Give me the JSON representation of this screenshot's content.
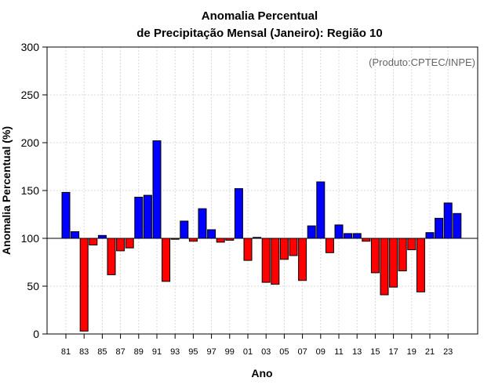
{
  "chart_data": {
    "type": "bar",
    "title_line1": "Anomalia Percentual",
    "title_line2": "de Precipitação Mensal (Janeiro): Região 10",
    "xlabel": "Ano",
    "ylabel": "Anomalia Percentual (%)",
    "credit": "(Produto:CPTEC/INPE)",
    "ylim": [
      0,
      300
    ],
    "yticks": [
      0,
      50,
      100,
      150,
      200,
      250,
      300
    ],
    "baseline": 100,
    "colors": {
      "above": "#0000ff",
      "below": "#ff0000"
    },
    "grid": true,
    "categories": [
      "81",
      "82",
      "83",
      "84",
      "85",
      "86",
      "87",
      "88",
      "89",
      "90",
      "91",
      "92",
      "93",
      "94",
      "95",
      "96",
      "97",
      "98",
      "99",
      "00",
      "01",
      "02",
      "03",
      "04",
      "05",
      "06",
      "07",
      "08",
      "09",
      "10",
      "11",
      "12",
      "13",
      "14",
      "15",
      "16",
      "17",
      "18",
      "19",
      "20",
      "21",
      "22",
      "23",
      "24"
    ],
    "xtick_labels": [
      "81",
      "83",
      "85",
      "87",
      "89",
      "91",
      "93",
      "95",
      "97",
      "99",
      "01",
      "03",
      "05",
      "07",
      "09",
      "11",
      "13",
      "15",
      "17",
      "19",
      "21",
      "23"
    ],
    "values": [
      148,
      107,
      3,
      93,
      103,
      62,
      87,
      90,
      143,
      145,
      202,
      55,
      99,
      118,
      97,
      131,
      109,
      96,
      98,
      152,
      77,
      101,
      54,
      52,
      78,
      82,
      56,
      113,
      159,
      85,
      114,
      105,
      105,
      97,
      64,
      41,
      49,
      66,
      88,
      44,
      106,
      121,
      137,
      126
    ]
  }
}
